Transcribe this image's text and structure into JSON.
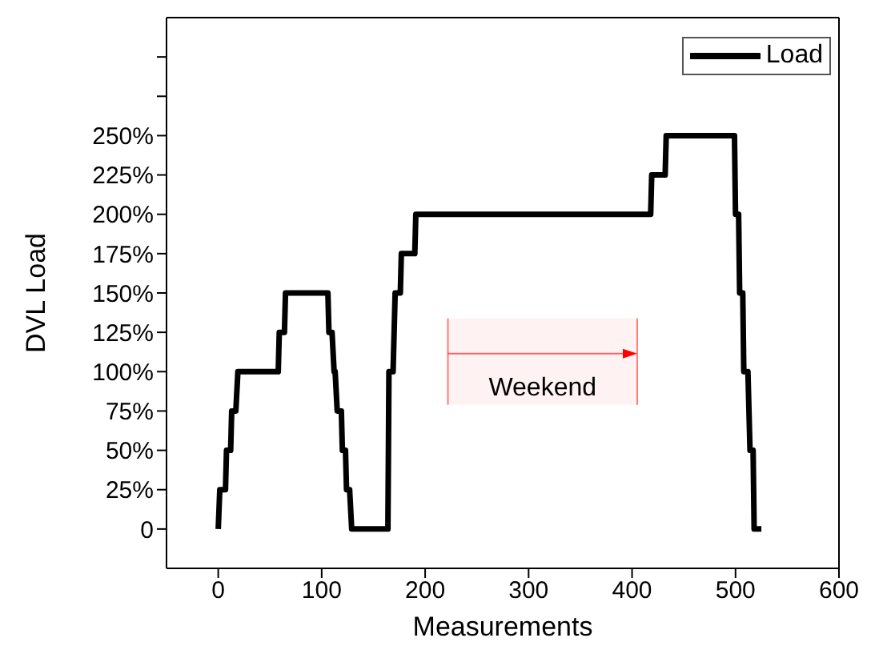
{
  "chart_data": {
    "type": "line",
    "xlabel": "Measurements",
    "ylabel": "DVL Load",
    "xlim": [
      -50,
      600
    ],
    "xticks": [
      0,
      100,
      200,
      300,
      400,
      500,
      600
    ],
    "ylim": [
      -25,
      325
    ],
    "yticks": [
      0,
      {
        "value": 25,
        "label": "25%"
      },
      {
        "value": 50,
        "label": "50%"
      },
      {
        "value": 75,
        "label": "75%"
      },
      {
        "value": 100,
        "label": "100%"
      },
      {
        "value": 125,
        "label": "125%"
      },
      {
        "value": 150,
        "label": "150%"
      },
      {
        "value": 175,
        "label": "175%"
      },
      {
        "value": 200,
        "label": "200%"
      },
      {
        "value": 225,
        "label": "225%"
      },
      {
        "value": 250,
        "label": "250%"
      },
      {
        "value": 275,
        "label": null
      },
      {
        "value": 300,
        "label": null
      }
    ],
    "series": [
      {
        "name": "Load",
        "color": "#000000",
        "x": [
          0,
          1.5,
          7,
          8,
          12,
          13,
          17,
          19,
          58,
          59,
          64,
          65,
          106,
          107,
          110,
          112,
          113,
          115,
          119,
          120,
          123,
          124,
          127,
          129,
          164,
          165,
          169,
          171,
          176,
          177,
          190,
          191,
          418,
          419,
          432,
          433,
          499,
          500,
          503,
          504,
          507,
          508,
          512,
          514,
          517,
          518,
          525
        ],
        "values": [
          0,
          25,
          25,
          50,
          50,
          75,
          75,
          100,
          100,
          125,
          125,
          150,
          150,
          125,
          125,
          100,
          100,
          75,
          75,
          50,
          50,
          25,
          25,
          0,
          0,
          100,
          100,
          150,
          150,
          175,
          175,
          200,
          200,
          225,
          225,
          250,
          250,
          200,
          200,
          150,
          150,
          100,
          100,
          50,
          50,
          0,
          0
        ]
      }
    ],
    "bands": [
      {
        "axis": "x",
        "from": 222,
        "to": 405,
        "label": "Weekend",
        "color": "#ff0000"
      }
    ],
    "legend": "top right",
    "grid": false,
    "marker": "none",
    "line_style": "solid"
  }
}
